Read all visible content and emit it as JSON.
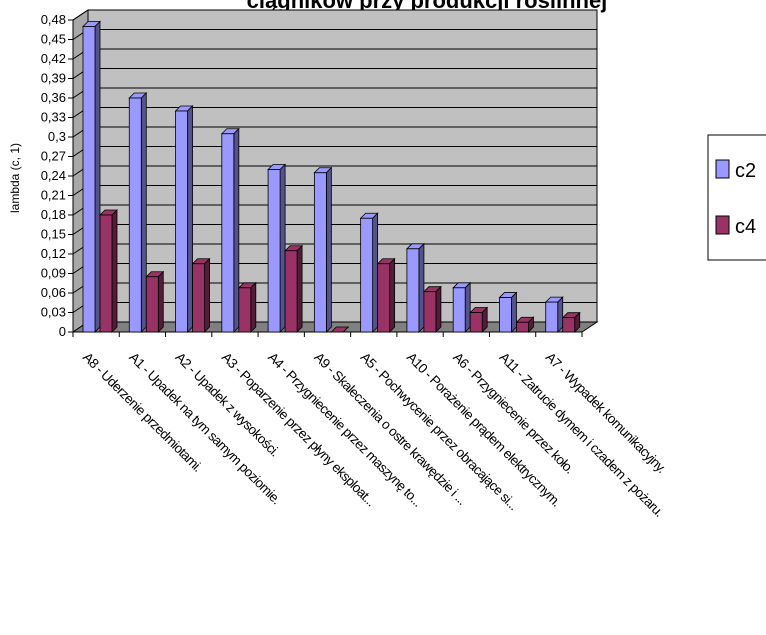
{
  "chart_data": {
    "type": "bar",
    "title": "ciągników przy produkcji roślinnej",
    "xlabel": "",
    "ylabel": "lambda (c, 1)",
    "ylim": [
      0,
      0.48
    ],
    "yticks": [
      "0",
      "0,03",
      "0,06",
      "0,09",
      "0,12",
      "0,15",
      "0,18",
      "0,21",
      "0,24",
      "0,27",
      "0,3",
      "0,33",
      "0,36",
      "0,39",
      "0,42",
      "0,45",
      "0,48"
    ],
    "grid": true,
    "legend_position": "right",
    "categories": [
      "A8 - Uderzenie przedmiotami.",
      "A1 - Upadek na tym samym poziomie.",
      "A2 - Upadek z wysokości.",
      "A3 - Poparzenie przez płyny eksploat...",
      "A4 - Przygniecenie przez maszynę to...",
      "A9 - Skaleczenia o ostre krawędzie i ...",
      "A5 - Pochwycenie przez obracające si...",
      "A10 - Porażenie prądem elektrycznym.",
      "A6 - Przygniecenie przez koło.",
      "A11 - Zatrucie dymem i czadem z pożaru.",
      "A7 - Wypadek komunikacyjny."
    ],
    "series": [
      {
        "name": "c2",
        "color": "#9999ff",
        "values": [
          0.47,
          0.36,
          0.34,
          0.305,
          0.25,
          0.245,
          0.175,
          0.128,
          0.068,
          0.053,
          0.046
        ]
      },
      {
        "name": "c4",
        "color": "#993366",
        "values": [
          0.18,
          0.085,
          0.105,
          0.068,
          0.125,
          0.0,
          0.105,
          0.062,
          0.03,
          0.015,
          0.022
        ]
      }
    ]
  }
}
